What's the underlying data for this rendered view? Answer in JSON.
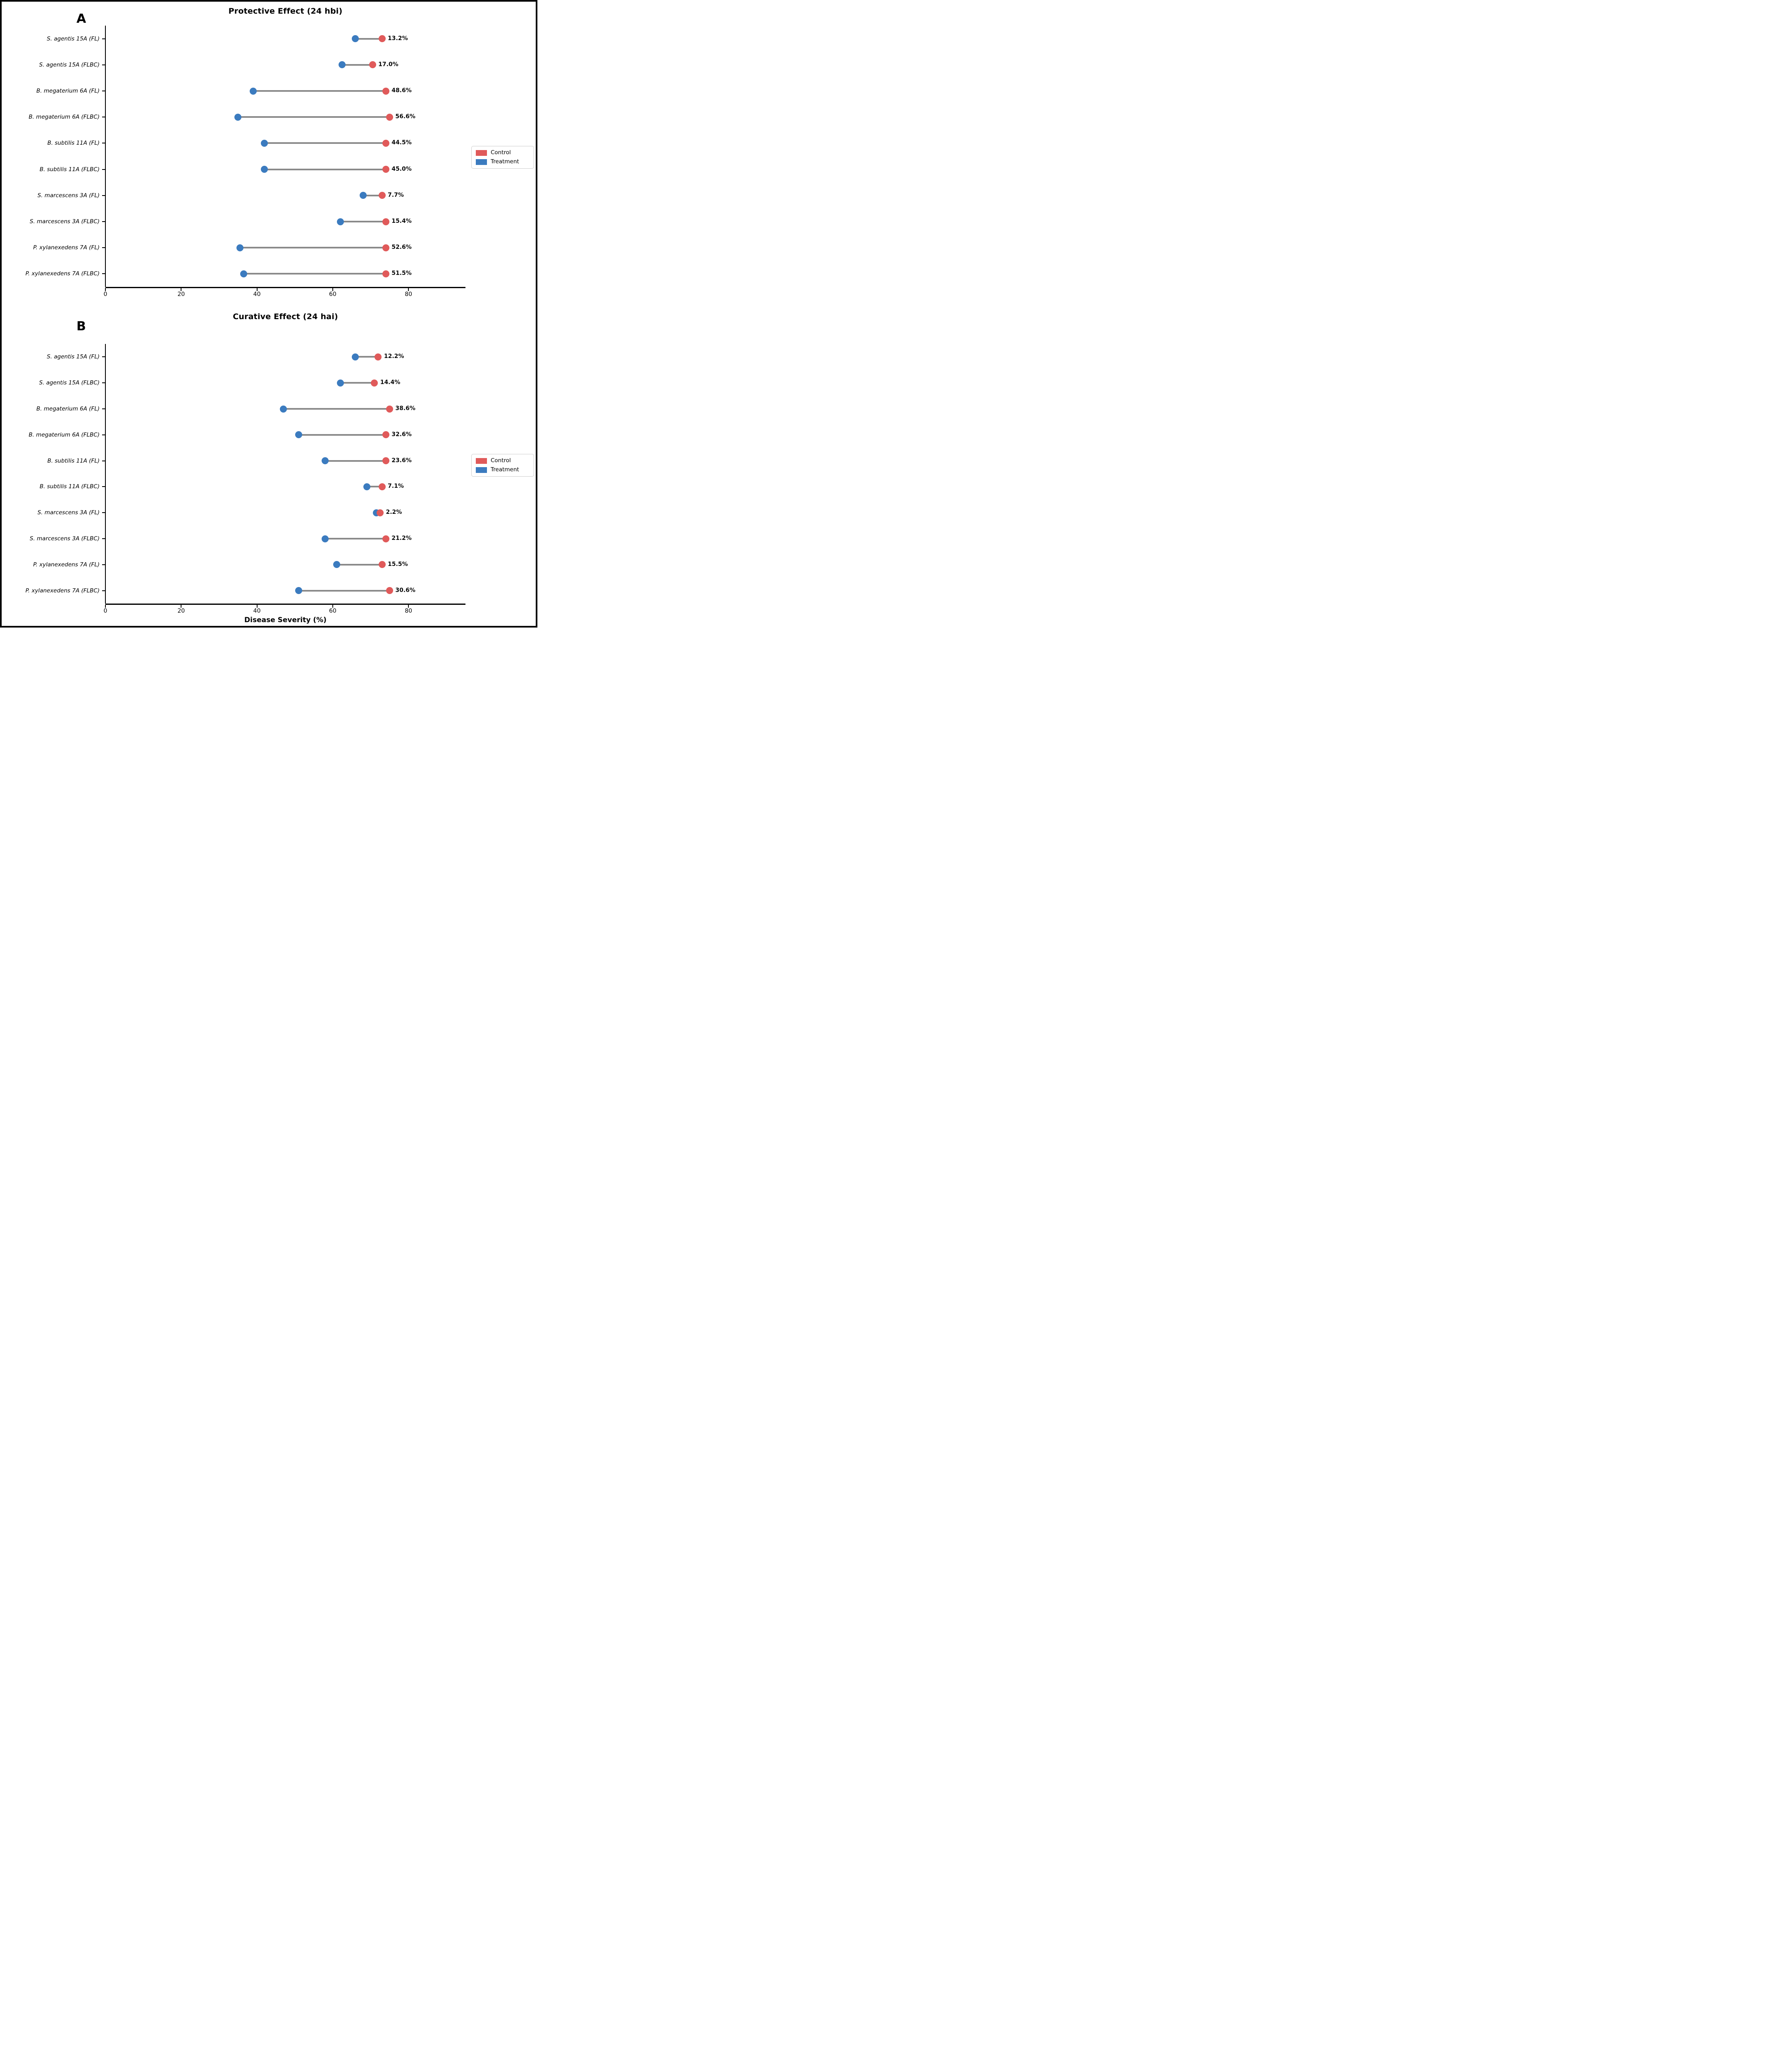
{
  "figure": {
    "xlabel": "Disease Severity (%)",
    "legend": {
      "control_label": "Control",
      "treatment_label": "Treatment"
    },
    "colors": {
      "control": "#E05A5A",
      "treatment": "#3B7BBF",
      "connector": "#8A8A8A",
      "axis": "#000000"
    }
  },
  "chart_data": [
    {
      "type": "scatter",
      "subtype": "dumbbell",
      "panel_letter": "A",
      "title": "Protective Effect (24 hbi)",
      "xlabel": "Disease Severity (%)",
      "xlim": [
        0,
        95
      ],
      "xticks": [
        0,
        20,
        40,
        60,
        80
      ],
      "grid": false,
      "legend_position": "right",
      "categories": [
        "S. agentis 15A (FL)",
        "S. agentis 15A (FLBC)",
        "B. megaterium 6A (FL)",
        "B. megaterium 6A (FLBC)",
        "B. subtilis 11A (FL)",
        "B. subtilis 11A (FLBC)",
        "S. marcescens 3A (FL)",
        "S. marcescens 3A (FLBC)",
        "P. xylanexedens 7A (FL)",
        "P. xylanexedens 7A (FLBC)"
      ],
      "series": [
        {
          "name": "Control",
          "values": [
            73,
            70.5,
            74,
            75,
            74,
            74,
            73,
            74,
            74,
            74
          ]
        },
        {
          "name": "Treatment",
          "values": [
            66,
            62.5,
            39,
            35,
            42,
            42,
            68,
            62,
            35.5,
            36.5
          ]
        }
      ],
      "point_labels": [
        "13.2%",
        "17.0%",
        "48.6%",
        "56.6%",
        "44.5%",
        "45.0%",
        "7.7%",
        "15.4%",
        "52.6%",
        "51.5%"
      ]
    },
    {
      "type": "scatter",
      "subtype": "dumbbell",
      "panel_letter": "B",
      "title": "Curative Effect (24 hai)",
      "xlabel": "Disease Severity (%)",
      "xlim": [
        0,
        95
      ],
      "xticks": [
        0,
        20,
        40,
        60,
        80
      ],
      "grid": false,
      "legend_position": "right",
      "categories": [
        "S. agentis 15A (FL)",
        "S. agentis 15A (FLBC)",
        "B. megaterium 6A (FL)",
        "B. megaterium 6A (FLBC)",
        "B. subtilis 11A (FL)",
        "B. subtilis 11A (FLBC)",
        "S. marcescens 3A (FL)",
        "S. marcescens 3A (FLBC)",
        "P. xylanexedens 7A (FL)",
        "P. xylanexedens 7A (FLBC)"
      ],
      "series": [
        {
          "name": "Control",
          "values": [
            72,
            71,
            75,
            74,
            74,
            73,
            72.5,
            74,
            73,
            75
          ]
        },
        {
          "name": "Treatment",
          "values": [
            66,
            62,
            47,
            51,
            58,
            69,
            71.5,
            58,
            61,
            51
          ]
        }
      ],
      "point_labels": [
        "12.2%",
        "14.4%",
        "38.6%",
        "32.6%",
        "23.6%",
        "7.1%",
        "2.2%",
        "21.2%",
        "15.5%",
        "30.6%"
      ]
    }
  ]
}
